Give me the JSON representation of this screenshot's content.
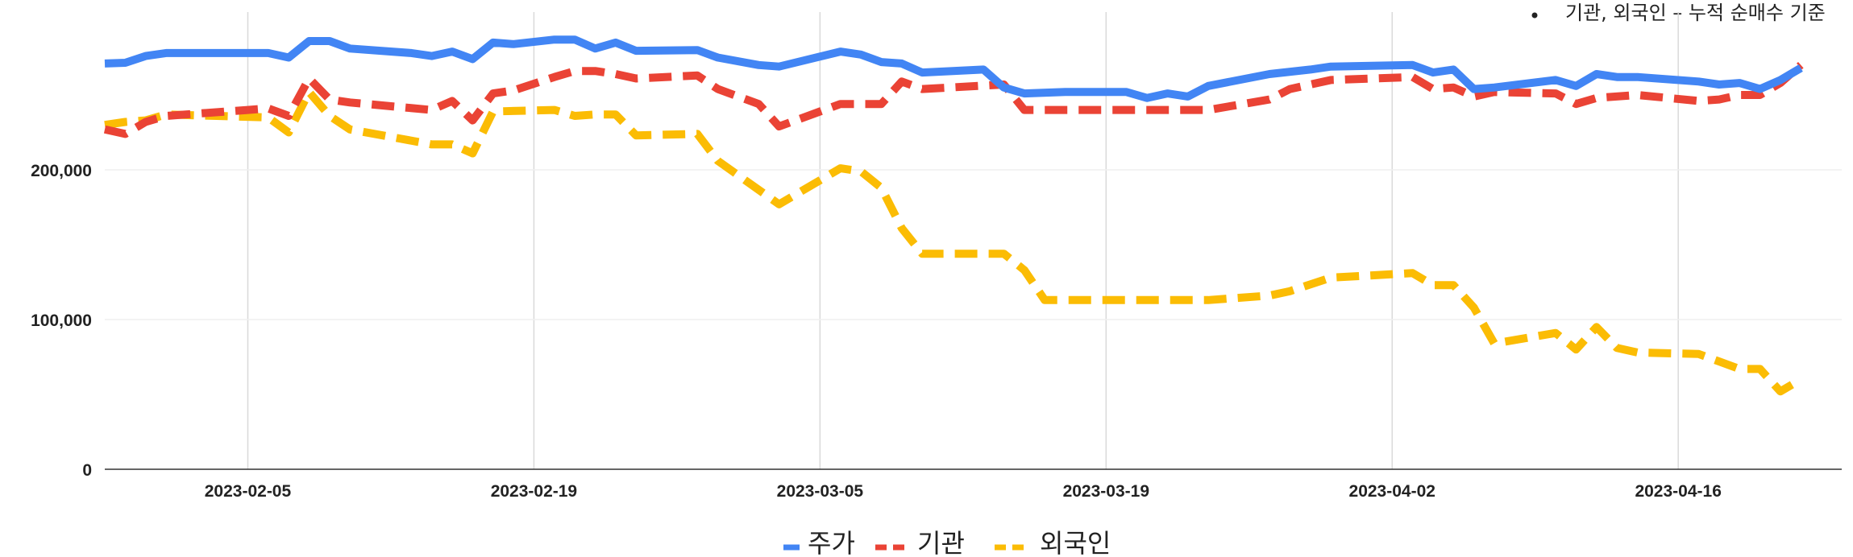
{
  "note": "기관, 외국인 – 누적 순매수 기준",
  "chart_data": {
    "type": "line",
    "title": "",
    "xlabel": "",
    "ylabel": "",
    "x_range": [
      "2023-01-29",
      "2023-04-24"
    ],
    "ylim": [
      0,
      300000
    ],
    "y_ticks": [
      0,
      100000,
      200000
    ],
    "y_tick_labels": [
      "0",
      "100,000",
      "200,000"
    ],
    "x_ticks": [
      "2023-02-05",
      "2023-02-19",
      "2023-03-05",
      "2023-03-19",
      "2023-04-02",
      "2023-04-16"
    ],
    "grid": true,
    "legend": "bottom",
    "series": [
      {
        "name": "주가",
        "color": "#4285f4",
        "style": "solid",
        "points": [
          [
            "2023-01-29",
            271000
          ],
          [
            "2023-01-30",
            271500
          ],
          [
            "2023-01-31",
            276000
          ],
          [
            "2023-02-01",
            278000
          ],
          [
            "2023-02-06",
            278000
          ],
          [
            "2023-02-07",
            275000
          ],
          [
            "2023-02-08",
            286000
          ],
          [
            "2023-02-09",
            286000
          ],
          [
            "2023-02-10",
            281000
          ],
          [
            "2023-02-13",
            278000
          ],
          [
            "2023-02-14",
            276000
          ],
          [
            "2023-02-15",
            279000
          ],
          [
            "2023-02-16",
            274000
          ],
          [
            "2023-02-17",
            285000
          ],
          [
            "2023-02-18",
            284000
          ],
          [
            "2023-02-20",
            287000
          ],
          [
            "2023-02-21",
            287000
          ],
          [
            "2023-02-22",
            281000
          ],
          [
            "2023-02-23",
            285000
          ],
          [
            "2023-02-24",
            279500
          ],
          [
            "2023-02-27",
            280000
          ],
          [
            "2023-02-28",
            275000
          ],
          [
            "2023-03-02",
            270000
          ],
          [
            "2023-03-03",
            269000
          ],
          [
            "2023-03-06",
            279000
          ],
          [
            "2023-03-07",
            277000
          ],
          [
            "2023-03-08",
            272000
          ],
          [
            "2023-03-09",
            271000
          ],
          [
            "2023-03-10",
            265000
          ],
          [
            "2023-03-13",
            267000
          ],
          [
            "2023-03-14",
            255000
          ],
          [
            "2023-03-15",
            251000
          ],
          [
            "2023-03-17",
            252000
          ],
          [
            "2023-03-20",
            252000
          ],
          [
            "2023-03-21",
            248000
          ],
          [
            "2023-03-22",
            251000
          ],
          [
            "2023-03-23",
            249000
          ],
          [
            "2023-03-24",
            256000
          ],
          [
            "2023-03-27",
            264000
          ],
          [
            "2023-03-29",
            267000
          ],
          [
            "2023-03-30",
            269000
          ],
          [
            "2023-04-03",
            270000
          ],
          [
            "2023-04-04",
            265000
          ],
          [
            "2023-04-05",
            267000
          ],
          [
            "2023-04-06",
            254000
          ],
          [
            "2023-04-07",
            255000
          ],
          [
            "2023-04-10",
            260000
          ],
          [
            "2023-04-11",
            256000
          ],
          [
            "2023-04-12",
            264000
          ],
          [
            "2023-04-13",
            262000
          ],
          [
            "2023-04-14",
            262000
          ],
          [
            "2023-04-17",
            259000
          ],
          [
            "2023-04-18",
            257000
          ],
          [
            "2023-04-19",
            258000
          ],
          [
            "2023-04-20",
            254000
          ],
          [
            "2023-04-21",
            260000
          ],
          [
            "2023-04-22",
            268000
          ]
        ]
      },
      {
        "name": "기관",
        "color": "#ea4335",
        "style": "dashed",
        "points": [
          [
            "2023-01-29",
            227000
          ],
          [
            "2023-01-30",
            224000
          ],
          [
            "2023-01-31",
            232000
          ],
          [
            "2023-02-01",
            236000
          ],
          [
            "2023-02-05",
            240000
          ],
          [
            "2023-02-06",
            241000
          ],
          [
            "2023-02-07",
            236000
          ],
          [
            "2023-02-08",
            261000
          ],
          [
            "2023-02-09",
            247000
          ],
          [
            "2023-02-10",
            245000
          ],
          [
            "2023-02-14",
            240000
          ],
          [
            "2023-02-15",
            246000
          ],
          [
            "2023-02-16",
            233000
          ],
          [
            "2023-02-17",
            251000
          ],
          [
            "2023-02-18",
            253000
          ],
          [
            "2023-02-20",
            262000
          ],
          [
            "2023-02-21",
            266000
          ],
          [
            "2023-02-22",
            266000
          ],
          [
            "2023-02-23",
            264000
          ],
          [
            "2023-02-24",
            261000
          ],
          [
            "2023-02-27",
            263000
          ],
          [
            "2023-02-28",
            254000
          ],
          [
            "2023-03-02",
            244000
          ],
          [
            "2023-03-03",
            229000
          ],
          [
            "2023-03-06",
            244000
          ],
          [
            "2023-03-07",
            244000
          ],
          [
            "2023-03-08",
            244000
          ],
          [
            "2023-03-09",
            259000
          ],
          [
            "2023-03-10",
            254000
          ],
          [
            "2023-03-14",
            257000
          ],
          [
            "2023-03-15",
            240000
          ],
          [
            "2023-03-24",
            240000
          ],
          [
            "2023-03-27",
            247000
          ],
          [
            "2023-03-28",
            254000
          ],
          [
            "2023-03-30",
            260000
          ],
          [
            "2023-04-03",
            262000
          ],
          [
            "2023-04-04",
            254000
          ],
          [
            "2023-04-05",
            255000
          ],
          [
            "2023-04-06",
            249000
          ],
          [
            "2023-04-07",
            252000
          ],
          [
            "2023-04-10",
            251000
          ],
          [
            "2023-04-11",
            244000
          ],
          [
            "2023-04-12",
            248000
          ],
          [
            "2023-04-14",
            250000
          ],
          [
            "2023-04-17",
            246000
          ],
          [
            "2023-04-18",
            247000
          ],
          [
            "2023-04-19",
            250000
          ],
          [
            "2023-04-20",
            250000
          ],
          [
            "2023-04-21",
            258000
          ],
          [
            "2023-04-22",
            270000
          ]
        ]
      },
      {
        "name": "외국인",
        "color": "#fbbc04",
        "style": "dashed",
        "points": [
          [
            "2023-01-29",
            230000
          ],
          [
            "2023-01-30",
            232000
          ],
          [
            "2023-01-31",
            233000
          ],
          [
            "2023-02-01",
            237000
          ],
          [
            "2023-02-06",
            235000
          ],
          [
            "2023-02-07",
            225000
          ],
          [
            "2023-02-08",
            252000
          ],
          [
            "2023-02-09",
            236000
          ],
          [
            "2023-02-10",
            227000
          ],
          [
            "2023-02-14",
            217000
          ],
          [
            "2023-02-15",
            217000
          ],
          [
            "2023-02-16",
            211000
          ],
          [
            "2023-02-17",
            239000
          ],
          [
            "2023-02-20",
            240000
          ],
          [
            "2023-02-21",
            236000
          ],
          [
            "2023-02-22",
            237000
          ],
          [
            "2023-02-23",
            237000
          ],
          [
            "2023-02-24",
            223000
          ],
          [
            "2023-02-27",
            224000
          ],
          [
            "2023-02-28",
            206000
          ],
          [
            "2023-03-03",
            177000
          ],
          [
            "2023-03-06",
            201000
          ],
          [
            "2023-03-07",
            199000
          ],
          [
            "2023-03-08",
            188000
          ],
          [
            "2023-03-09",
            161000
          ],
          [
            "2023-03-10",
            144000
          ],
          [
            "2023-03-14",
            144000
          ],
          [
            "2023-03-15",
            133000
          ],
          [
            "2023-03-16",
            113000
          ],
          [
            "2023-03-24",
            113000
          ],
          [
            "2023-03-27",
            116000
          ],
          [
            "2023-03-28",
            119000
          ],
          [
            "2023-03-30",
            128000
          ],
          [
            "2023-04-03",
            131000
          ],
          [
            "2023-04-04",
            123000
          ],
          [
            "2023-04-05",
            123000
          ],
          [
            "2023-04-06",
            108000
          ],
          [
            "2023-04-07",
            84000
          ],
          [
            "2023-04-10",
            91000
          ],
          [
            "2023-04-11",
            80000
          ],
          [
            "2023-04-12",
            95000
          ],
          [
            "2023-04-13",
            81000
          ],
          [
            "2023-04-14",
            78000
          ],
          [
            "2023-04-17",
            77000
          ],
          [
            "2023-04-18",
            72000
          ],
          [
            "2023-04-19",
            67000
          ],
          [
            "2023-04-20",
            67000
          ],
          [
            "2023-04-21",
            52000
          ],
          [
            "2023-04-22",
            60000
          ]
        ]
      }
    ]
  }
}
